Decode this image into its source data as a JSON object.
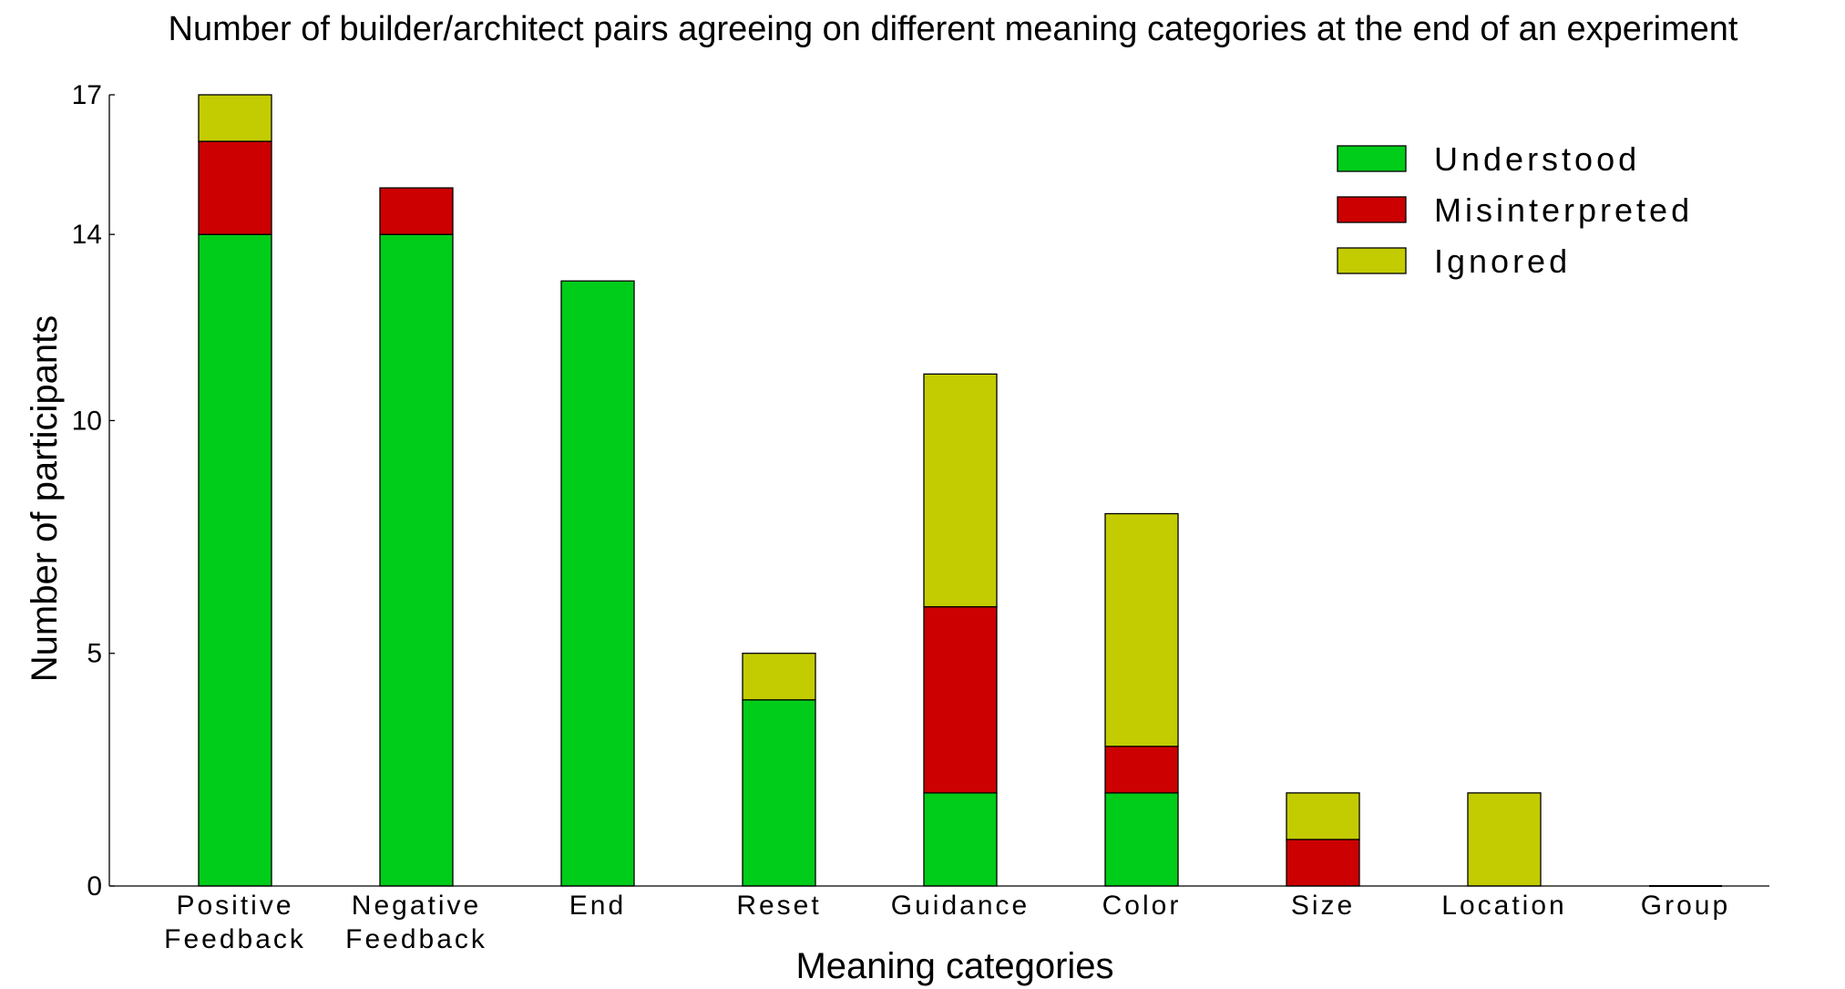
{
  "chart_data": {
    "type": "bar",
    "stacked": true,
    "title": "Number of builder/architect pairs agreeing on different meaning categories at the end of an experiment",
    "xlabel": "Meaning categories",
    "ylabel": "Number of participants",
    "ylim": [
      0,
      17
    ],
    "yticks": [
      0,
      5,
      10,
      14,
      17
    ],
    "grid": false,
    "legend_position": "top-right",
    "categories": [
      [
        "Positive",
        "Feedback"
      ],
      [
        "Negative",
        "Feedback"
      ],
      [
        "End"
      ],
      [
        "Reset"
      ],
      [
        "Guidance"
      ],
      [
        "Color"
      ],
      [
        "Size"
      ],
      [
        "Location"
      ],
      [
        "Group"
      ]
    ],
    "series": [
      {
        "name": "Understood",
        "color": "#00cc1a",
        "values": [
          14,
          14,
          13,
          4,
          2,
          2,
          0,
          0,
          0
        ]
      },
      {
        "name": "Misinterpreted",
        "color": "#cc0000",
        "values": [
          2,
          1,
          0,
          0,
          4,
          1,
          1,
          0,
          0
        ]
      },
      {
        "name": "Ignored",
        "color": "#c3cc00",
        "values": [
          1,
          0,
          0,
          1,
          5,
          5,
          1,
          2,
          0
        ]
      }
    ]
  }
}
